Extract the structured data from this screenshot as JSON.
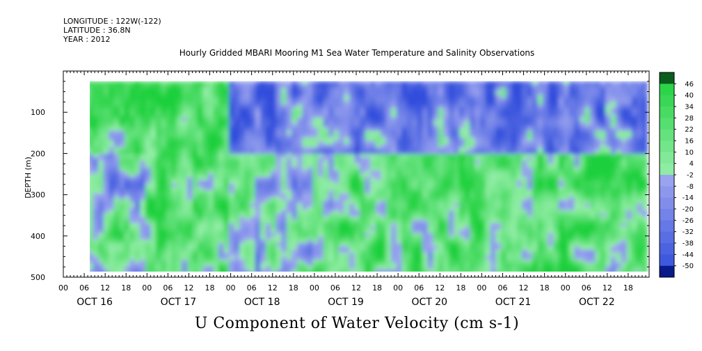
{
  "header": {
    "longitude": "LONGITUDE : 122W(-122)",
    "latitude": "LATITUDE : 36.8N",
    "year": "YEAR : 2012"
  },
  "title": "Hourly Gridded MBARI Mooring M1 Sea Water Temperature and Salinity Observations",
  "footer": "U Component of Water Velocity (cm s-1)",
  "chart_data": {
    "type": "heatmap",
    "ylabel": "DEPTH (m)",
    "ylim": [
      500,
      0
    ],
    "y_ticks": [
      100,
      200,
      300,
      400,
      500
    ],
    "x_hour_labels": [
      "00",
      "06",
      "12",
      "18"
    ],
    "x_day_labels": [
      "OCT 16",
      "OCT 17",
      "OCT 18",
      "OCT 19",
      "OCT 20",
      "OCT 21",
      "OCT 22"
    ],
    "xlim_hours_from_oct16_00": [
      0,
      168
    ],
    "data_extent_hours": [
      7,
      167
    ],
    "data_extent_depth_m": [
      25,
      490
    ],
    "colorbar": {
      "levels": [
        "46",
        "40",
        "34",
        "28",
        "22",
        "16",
        "10",
        "4",
        "-2",
        "-8",
        "-14",
        "-20",
        "-26",
        "-32",
        "-38",
        "-44",
        "-50"
      ],
      "colors": {
        "strong_positive": "#0b5d1e",
        "mid_positive": "#22c94a",
        "weak_positive": "#8ff0a2",
        "weak_negative": "#9fa8ef",
        "mid_negative": "#4a63e0",
        "strong_negative": "#0a1a8a"
      }
    },
    "pattern_description_hint": [
      {
        "day": "OCT 16",
        "upper": "positive",
        "lower": "mixed"
      },
      {
        "day": "OCT 17",
        "upper": "positive",
        "lower": "positive"
      },
      {
        "day": "OCT 18",
        "upper": "negative",
        "lower": "mixed"
      },
      {
        "day": "OCT 19",
        "upper": "negative",
        "lower": "positive"
      },
      {
        "day": "OCT 20",
        "upper": "negative",
        "lower": "positive"
      },
      {
        "day": "OCT 21",
        "upper": "negative",
        "lower": "positive"
      },
      {
        "day": "OCT 22",
        "upper": "negative",
        "lower": "positive"
      }
    ]
  }
}
